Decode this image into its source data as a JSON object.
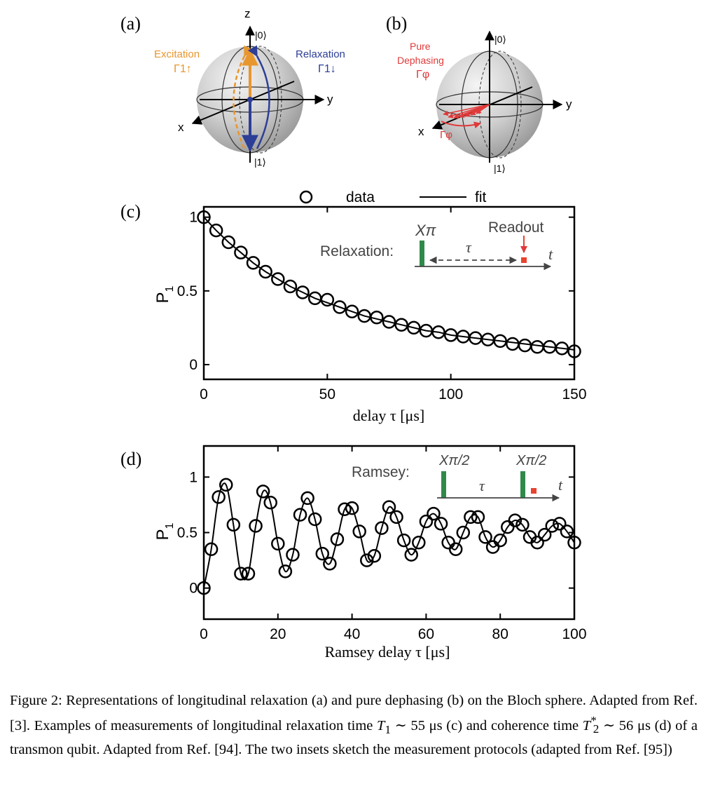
{
  "panels": {
    "a": {
      "label": "(a)",
      "axis_z": "z",
      "axis_y": "y",
      "axis_x": "x",
      "ket0": "|0⟩",
      "ket1": "|1⟩",
      "excitation": "Excitation",
      "excitation_symbol": "Γ1↑",
      "relaxation": "Relaxation",
      "relaxation_symbol": "Γ1↓"
    },
    "b": {
      "label": "(b)",
      "axis_y": "y",
      "axis_x": "x",
      "ket0": "|0⟩",
      "ket1": "|1⟩",
      "pure": "Pure",
      "dephasing": "Dephasing",
      "gamma_phi_top": "Γφ",
      "gamma_phi_arrow": "Γφ"
    },
    "c": {
      "label": "(c)",
      "legend_data": "data",
      "legend_fit": "fit",
      "inset_label": "Relaxation:",
      "inset_pulse": "Xπ",
      "inset_tau": "τ",
      "inset_readout": "Readout",
      "inset_t": "t"
    },
    "d": {
      "label": "(d)",
      "inset_label": "Ramsey:",
      "inset_pulse1": "Xπ/2",
      "inset_pulse2": "Xπ/2",
      "inset_tau": "τ",
      "inset_t": "t"
    }
  },
  "colors": {
    "excitation": "#e8962e",
    "relaxation": "#2d3e96",
    "dephasing": "#e03a3a",
    "pulse": "#2f8a4a",
    "readout": "#e8432e"
  },
  "chart_data": [
    {
      "type": "scatter",
      "panel": "c",
      "xlabel": "delay τ [μs]",
      "ylabel": "P1",
      "xlim": [
        0,
        150
      ],
      "ylim": [
        -0.1,
        1.07
      ],
      "xticks": [
        0,
        50,
        100,
        150
      ],
      "yticks": [
        0,
        0.5,
        1
      ],
      "ytick_labels": [
        "0",
        "0.5",
        "1"
      ],
      "legend": "top",
      "series": [
        {
          "name": "data",
          "x": [
            0,
            5,
            10,
            15,
            20,
            25,
            30,
            35,
            40,
            45,
            50,
            55,
            60,
            65,
            70,
            75,
            80,
            85,
            90,
            95,
            100,
            105,
            110,
            115,
            120,
            125,
            130,
            135,
            140,
            145,
            150
          ],
          "y": [
            1.0,
            0.91,
            0.83,
            0.76,
            0.69,
            0.63,
            0.58,
            0.53,
            0.49,
            0.45,
            0.44,
            0.39,
            0.36,
            0.33,
            0.32,
            0.29,
            0.27,
            0.25,
            0.23,
            0.22,
            0.2,
            0.19,
            0.18,
            0.17,
            0.16,
            0.14,
            0.13,
            0.12,
            0.12,
            0.11,
            0.09
          ]
        },
        {
          "name": "fit",
          "x": [
            0,
            5,
            10,
            15,
            20,
            25,
            30,
            35,
            40,
            45,
            50,
            55,
            60,
            65,
            70,
            75,
            80,
            85,
            90,
            95,
            100,
            105,
            110,
            115,
            120,
            125,
            130,
            135,
            140,
            145,
            150
          ],
          "y": [
            1.0,
            0.91,
            0.83,
            0.76,
            0.69,
            0.63,
            0.58,
            0.53,
            0.49,
            0.45,
            0.42,
            0.39,
            0.36,
            0.33,
            0.31,
            0.29,
            0.27,
            0.25,
            0.23,
            0.22,
            0.2,
            0.19,
            0.18,
            0.17,
            0.16,
            0.15,
            0.14,
            0.13,
            0.12,
            0.11,
            0.1
          ]
        }
      ]
    },
    {
      "type": "scatter",
      "panel": "d",
      "xlabel": "Ramsey delay τ [μs]",
      "ylabel": "P1",
      "xlim": [
        0,
        100
      ],
      "ylim": [
        -0.28,
        1.28
      ],
      "xticks": [
        0,
        20,
        40,
        60,
        80,
        100
      ],
      "yticks": [
        0,
        0.5,
        1
      ],
      "ytick_labels": [
        "0",
        "0.5",
        "1"
      ],
      "series": [
        {
          "name": "data",
          "x": [
            0,
            2,
            4,
            6,
            8,
            10,
            12,
            14,
            16,
            18,
            20,
            22,
            24,
            26,
            28,
            30,
            32,
            34,
            36,
            38,
            40,
            42,
            44,
            46,
            48,
            50,
            52,
            54,
            56,
            58,
            60,
            62,
            64,
            66,
            68,
            70,
            72,
            74,
            76,
            78,
            80,
            82,
            84,
            86,
            88,
            90,
            92,
            94,
            96,
            98,
            100
          ],
          "y": [
            0.0,
            0.35,
            0.82,
            0.93,
            0.57,
            0.13,
            0.13,
            0.56,
            0.87,
            0.77,
            0.4,
            0.15,
            0.3,
            0.66,
            0.81,
            0.62,
            0.31,
            0.22,
            0.44,
            0.71,
            0.72,
            0.51,
            0.25,
            0.29,
            0.54,
            0.73,
            0.64,
            0.43,
            0.3,
            0.41,
            0.6,
            0.67,
            0.58,
            0.41,
            0.35,
            0.5,
            0.64,
            0.64,
            0.46,
            0.37,
            0.43,
            0.55,
            0.61,
            0.57,
            0.46,
            0.41,
            0.48,
            0.56,
            0.58,
            0.51,
            0.41
          ]
        }
      ]
    }
  ],
  "caption": {
    "p1": "Figure 2: Representations of longitudinal relaxation (a) and pure dephasing (b) on the Bloch sphere. Adapted from Ref. [3]. Examples of measurements of longitudinal relaxation time ",
    "t1": "T",
    "t1_sub": "1",
    "p2": " ∼ 55 μs (c) and coherence time ",
    "t2": "T",
    "t2_sup": "*",
    "t2_sub": "2",
    "p3": " ∼ 56 μs (d) of a transmon qubit. Adapted from Ref. [94]. The two insets sketch the measurement protocols (adapted from Ref. [95])"
  }
}
